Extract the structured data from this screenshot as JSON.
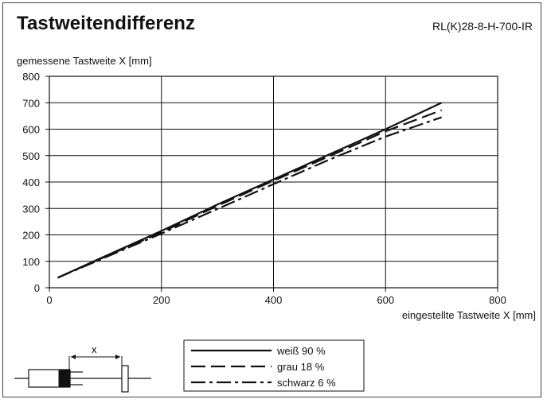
{
  "header": {
    "title": "Tastweitendifferenz",
    "model": "RL(K)28-8-H-700-IR"
  },
  "axes": {
    "ylabel": "gemessene Tastweite X [mm]",
    "xlabel": "eingestellte Tastweite X [mm]"
  },
  "sketch": {
    "distance_label": "x"
  },
  "colors": {
    "line": "#111111",
    "grid": "#111111",
    "background": "#ffffff"
  },
  "chart_data": {
    "type": "line",
    "xlabel": "eingestellte Tastweite X [mm]",
    "ylabel": "gemessene Tastweite X [mm]",
    "xlim": [
      0,
      800
    ],
    "ylim": [
      0,
      800
    ],
    "xticks": [
      0,
      200,
      400,
      600,
      800
    ],
    "yticks": [
      0,
      100,
      200,
      300,
      400,
      500,
      600,
      700,
      800
    ],
    "grid": true,
    "legend_position": "bottom-center",
    "series": [
      {
        "name": "weiß 90 %",
        "style": "solid",
        "x": [
          15,
          100,
          200,
          300,
          400,
          500,
          600,
          700
        ],
        "y": [
          38,
          120,
          215,
          315,
          410,
          505,
          600,
          700
        ]
      },
      {
        "name": "grau 18 %",
        "style": "dashed",
        "x": [
          15,
          100,
          200,
          300,
          400,
          500,
          600,
          700
        ],
        "y": [
          38,
          118,
          210,
          310,
          405,
          498,
          592,
          672
        ]
      },
      {
        "name": "schwarz 6 %",
        "style": "dashdot",
        "x": [
          15,
          100,
          200,
          300,
          400,
          500,
          600,
          700
        ],
        "y": [
          38,
          115,
          205,
          298,
          392,
          485,
          572,
          645
        ]
      }
    ]
  }
}
